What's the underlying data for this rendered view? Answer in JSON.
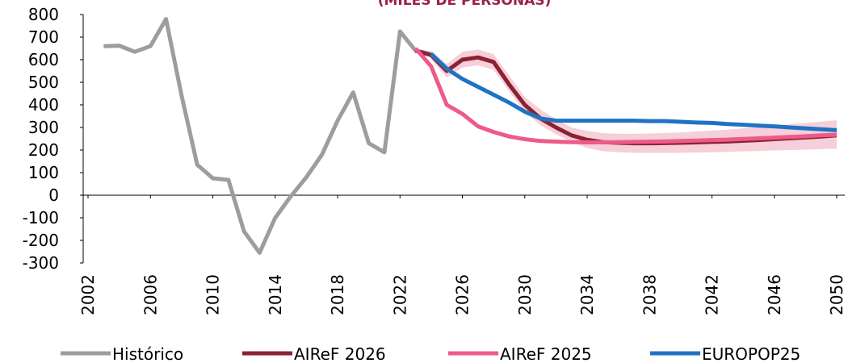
{
  "chart_data": {
    "type": "line",
    "title": "(MILES DE PERSONAS)",
    "title_color": "#9b1f4f",
    "xlim": [
      2002,
      2050
    ],
    "xticks": [
      2002,
      2006,
      2010,
      2014,
      2018,
      2022,
      2026,
      2030,
      2034,
      2038,
      2042,
      2046,
      2050
    ],
    "ylim": [
      -300,
      800
    ],
    "yticks": [
      -300,
      -200,
      -100,
      0,
      100,
      200,
      300,
      400,
      500,
      600,
      700,
      800
    ],
    "legend": "bottom",
    "band": {
      "color": "#f6cfd8",
      "x": [
        2024,
        2025,
        2026,
        2027,
        2028,
        2029,
        2030,
        2031,
        2032,
        2033,
        2034,
        2035,
        2036,
        2037,
        2038,
        2039,
        2040,
        2041,
        2042,
        2043,
        2044,
        2045,
        2046,
        2047,
        2048,
        2049,
        2050
      ],
      "lower": [
        600,
        520,
        565,
        575,
        555,
        460,
        370,
        310,
        270,
        235,
        210,
        195,
        190,
        188,
        187,
        187,
        188,
        189,
        190,
        192,
        194,
        196,
        198,
        200,
        202,
        204,
        206
      ],
      "upper": [
        640,
        580,
        635,
        645,
        625,
        530,
        435,
        380,
        335,
        300,
        285,
        275,
        272,
        272,
        273,
        275,
        278,
        282,
        286,
        290,
        296,
        302,
        308,
        314,
        320,
        326,
        332
      ]
    },
    "series": [
      {
        "name": "Histórico",
        "color": "#9d9d9d",
        "x": [
          2003,
          2004,
          2005,
          2006,
          2007,
          2008,
          2009,
          2010,
          2011,
          2012,
          2013,
          2014,
          2015,
          2016,
          2017,
          2018,
          2019,
          2020,
          2021,
          2022,
          2023,
          2024
        ],
        "values": [
          660,
          662,
          635,
          660,
          780,
          440,
          135,
          75,
          68,
          -160,
          -255,
          -100,
          -5,
          80,
          180,
          330,
          455,
          230,
          190,
          725,
          640,
          625
        ]
      },
      {
        "name": "AIReF 2026",
        "color": "#8b2232",
        "x": [
          2023,
          2024,
          2025,
          2026,
          2027,
          2028,
          2029,
          2030,
          2031,
          2032,
          2033,
          2034,
          2035,
          2036,
          2037,
          2038,
          2039,
          2040,
          2041,
          2042,
          2043,
          2044,
          2045,
          2046,
          2047,
          2048,
          2049,
          2050
        ],
        "values": [
          640,
          620,
          550,
          600,
          610,
          590,
          490,
          400,
          340,
          300,
          265,
          245,
          235,
          232,
          230,
          230,
          231,
          232,
          234,
          236,
          238,
          241,
          244,
          248,
          252,
          256,
          260,
          265
        ]
      },
      {
        "name": "AIReF 2025",
        "color": "#ee5a8a",
        "x": [
          2023,
          2024,
          2025,
          2026,
          2027,
          2028,
          2029,
          2030,
          2031,
          2032,
          2033,
          2034,
          2035,
          2036,
          2037,
          2038,
          2039,
          2040,
          2041,
          2042,
          2043,
          2044,
          2045,
          2046,
          2047,
          2048,
          2049,
          2050
        ],
        "values": [
          650,
          570,
          400,
          360,
          305,
          280,
          260,
          248,
          240,
          237,
          235,
          234,
          234,
          235,
          236,
          237,
          238,
          240,
          242,
          244,
          246,
          249,
          252,
          255,
          258,
          261,
          265,
          268
        ]
      },
      {
        "name": "EUROPOP25",
        "color": "#1f73c2",
        "x": [
          2024,
          2025,
          2026,
          2027,
          2028,
          2029,
          2030,
          2031,
          2032,
          2033,
          2034,
          2035,
          2036,
          2037,
          2038,
          2039,
          2040,
          2041,
          2042,
          2043,
          2044,
          2045,
          2046,
          2047,
          2048,
          2049,
          2050
        ],
        "values": [
          625,
          560,
          515,
          480,
          445,
          410,
          370,
          340,
          330,
          330,
          330,
          330,
          330,
          330,
          328,
          328,
          325,
          322,
          320,
          315,
          312,
          308,
          305,
          300,
          296,
          292,
          288
        ]
      }
    ]
  }
}
